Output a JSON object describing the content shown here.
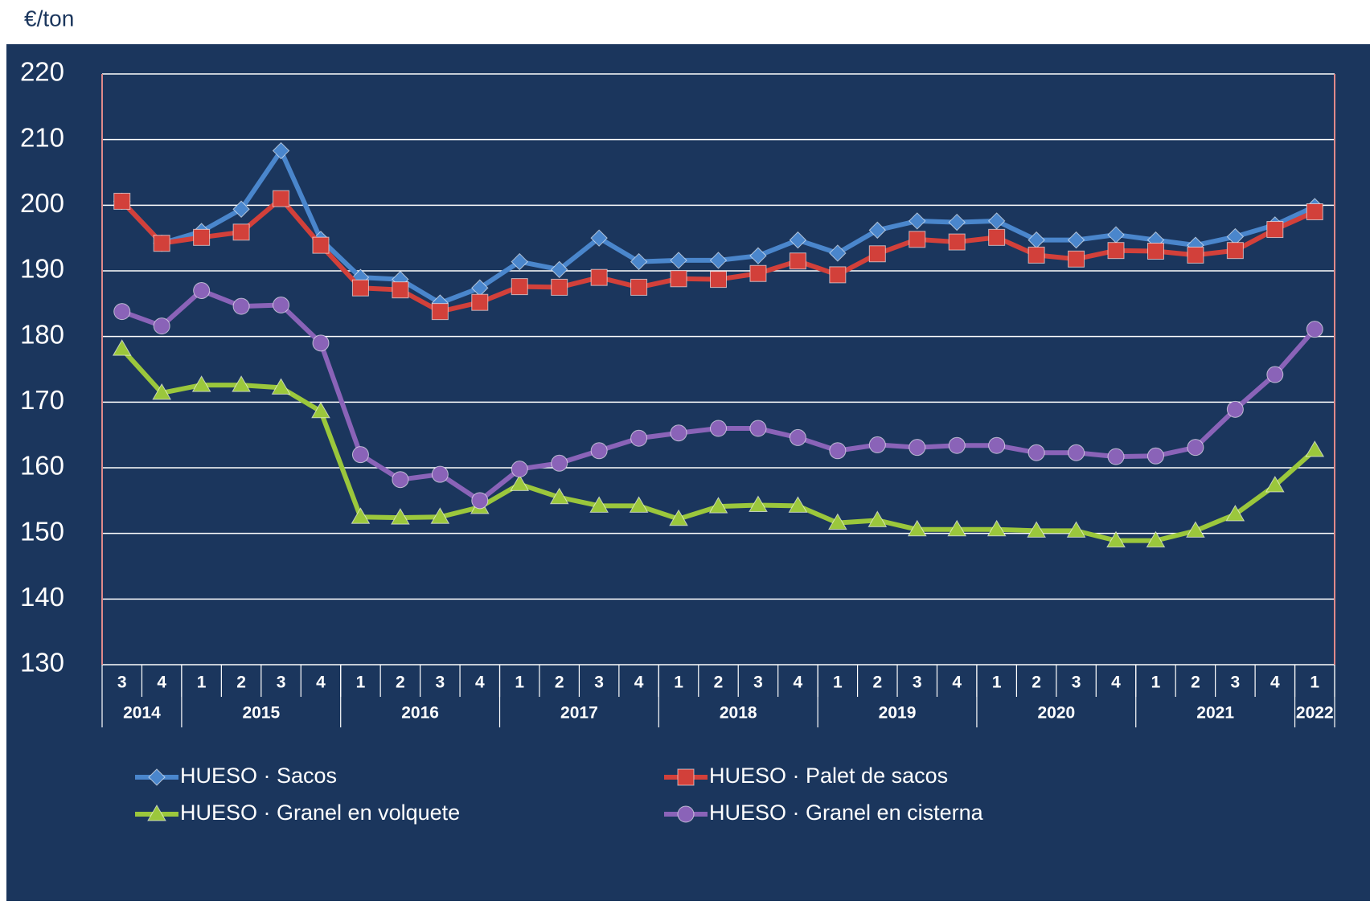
{
  "chart_data": {
    "type": "line",
    "y_label": "€/ton",
    "categories": [
      "3",
      "4",
      "1",
      "2",
      "3",
      "4",
      "1",
      "2",
      "3",
      "4",
      "1",
      "2",
      "3",
      "4",
      "1",
      "2",
      "3",
      "4",
      "1",
      "2",
      "3",
      "4",
      "1",
      "2",
      "3",
      "4",
      "1",
      "2",
      "3",
      "4",
      "1"
    ],
    "years": [
      "2014",
      "2015",
      "2016",
      "2017",
      "2018",
      "2019",
      "2020",
      "2021",
      "2022"
    ],
    "ylim": [
      130,
      220
    ],
    "yticks": [
      130,
      140,
      150,
      160,
      170,
      180,
      190,
      200,
      210,
      220
    ],
    "grid": true,
    "series": [
      {
        "name": "HUESO · Sacos",
        "color": "#4a86cc",
        "marker": "diamond",
        "values": [
          200.6,
          194.2,
          196,
          199.4,
          208.3,
          194.8,
          189,
          188.7,
          185.1,
          187.4,
          191.4,
          190.2,
          195,
          191.4,
          191.6,
          191.6,
          192.3,
          194.7,
          192.7,
          196.2,
          197.6,
          197.4,
          197.6,
          194.7,
          194.7,
          195.5,
          194.7,
          193.9,
          195.2,
          197,
          199.8
        ]
      },
      {
        "name": "HUESO · Palet de sacos",
        "color": "#d2403a",
        "marker": "square",
        "values": [
          200.6,
          194.2,
          195.1,
          195.9,
          201,
          193.9,
          187.4,
          187.1,
          183.8,
          185.2,
          187.6,
          187.5,
          189,
          187.5,
          188.8,
          188.7,
          189.6,
          191.5,
          189.4,
          192.6,
          194.8,
          194.4,
          195.1,
          192.4,
          191.8,
          193.1,
          193,
          192.4,
          193.1,
          196.3,
          199
        ]
      },
      {
        "name": "HUESO · Granel en volquete",
        "color": "#9bc73c",
        "marker": "triangle",
        "values": [
          178.1,
          171.4,
          172.6,
          172.6,
          172.2,
          168.6,
          152.5,
          152.4,
          152.5,
          154,
          157.5,
          155.5,
          154.2,
          154.2,
          152.2,
          154.1,
          154.3,
          154.2,
          151.6,
          152,
          150.6,
          150.6,
          150.6,
          150.4,
          150.4,
          148.9,
          148.9,
          150.4,
          152.9,
          157.3,
          162.7
        ]
      },
      {
        "name": "HUESO · Granel en cisterna",
        "color": "#8a63b8",
        "marker": "circle",
        "values": [
          183.8,
          181.6,
          187,
          184.6,
          184.8,
          179,
          162,
          158.2,
          159,
          155,
          159.8,
          160.7,
          162.6,
          164.5,
          165.3,
          166,
          166,
          164.6,
          162.6,
          163.5,
          163.1,
          163.4,
          163.4,
          162.3,
          162.3,
          161.7,
          161.8,
          163.1,
          168.9,
          174.2,
          181.1
        ]
      }
    ]
  }
}
